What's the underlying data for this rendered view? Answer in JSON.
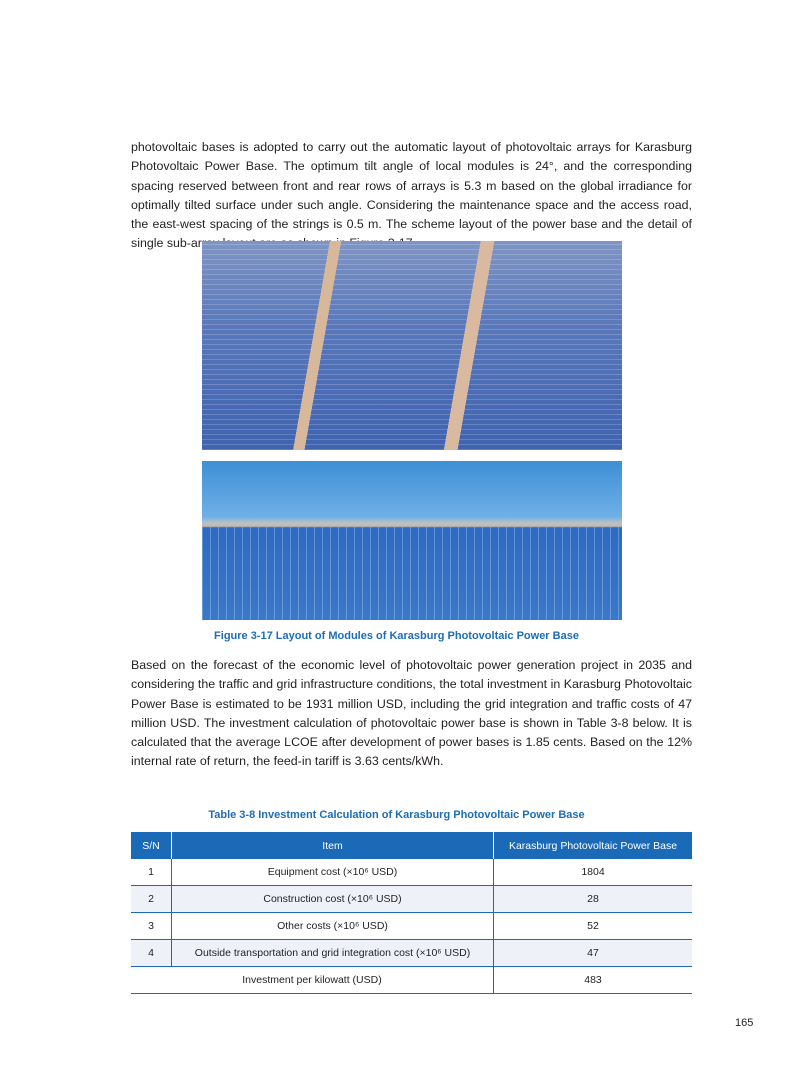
{
  "paragraph1": "photovoltaic bases is adopted to carry out the automatic layout of photovoltaic arrays for Karasburg Photovoltaic Power Base. The optimum tilt angle of local modules is 24°, and the corresponding spacing reserved between front and rear rows of arrays is 5.3 m based on the global irradiance for optimally tilted surface under such angle. Considering the maintenance space and the access road, the east-west spacing of the strings is 0.5 m. The scheme layout of the power base and the detail of single sub-array layout are as shown in Figure 3-17.",
  "figure_caption": "Figure 3-17    Layout of Modules of Karasburg Photovoltaic Power Base",
  "paragraph2": "Based on the forecast of the economic level of photovoltaic power generation project in 2035 and considering the traffic and grid infrastructure conditions, the total investment in Karasburg Photovoltaic Power Base is estimated to be 1931 million USD, including the grid integration and traffic costs of 47 million USD. The investment calculation of photovoltaic power base is shown in Table 3-8 below. It is calculated that the average LCOE after development of power bases is 1.85 cents. Based on the 12% internal rate of return, the feed-in tariff is 3.63 cents/kWh.",
  "table": {
    "caption": "Table 3-8    Investment Calculation of Karasburg Photovoltaic Power Base",
    "headers": [
      "S/N",
      "Item",
      "Karasburg Photovoltaic Power Base"
    ],
    "rows": [
      {
        "sn": "1",
        "item": "Equipment cost (×10⁶ USD)",
        "value": "1804"
      },
      {
        "sn": "2",
        "item": "Construction cost (×10⁶ USD)",
        "value": "28"
      },
      {
        "sn": "3",
        "item": "Other costs (×10⁶ USD)",
        "value": "52"
      },
      {
        "sn": "4",
        "item": "Outside transportation and grid integration cost (×10⁶ USD)",
        "value": "47"
      }
    ],
    "total": {
      "item": "Investment per kilowatt (USD)",
      "value": "483"
    }
  },
  "page_number": "165",
  "colors": {
    "accent": "#1a6ab8",
    "row_alt": "#eef1f8"
  }
}
